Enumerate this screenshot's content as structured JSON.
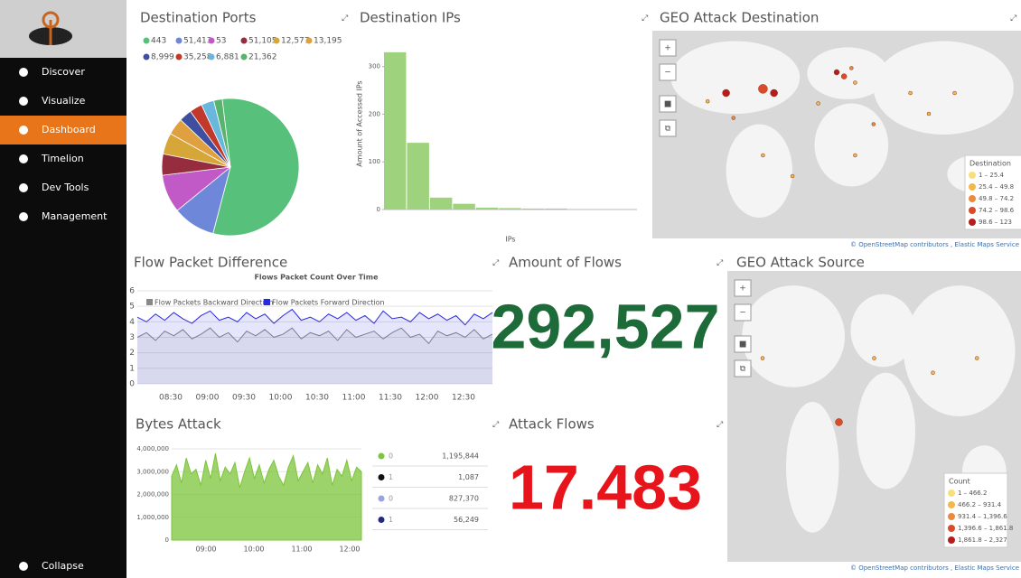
{
  "sidebar": {
    "items": [
      "Discover",
      "Visualize",
      "Dashboard",
      "Timelion",
      "Dev Tools",
      "Management"
    ],
    "active_index": 2,
    "collapse": "Collapse"
  },
  "panels": {
    "destination_ports": {
      "title": "Destination Ports",
      "chart_data": {
        "type": "pie",
        "categories": [
          "443",
          "51,413",
          "53",
          "51,105",
          "12,577",
          "13,195",
          "8,999",
          "35,258",
          "6,881",
          "21,362"
        ],
        "values": [
          56,
          10,
          9,
          5,
          5,
          4,
          3,
          3,
          3,
          2
        ],
        "colors": [
          "#57c17b",
          "#6f87d8",
          "#c15ac7",
          "#962d3e",
          "#d6a738",
          "#e0a040",
          "#3f4fa0",
          "#c0392b",
          "#6ab7dd",
          "#58b46a"
        ]
      }
    },
    "destination_ips": {
      "title": "Destination IPs",
      "chart_data": {
        "type": "bar",
        "y_label": "Amount of Accessed IPs",
        "x_label": "IPs",
        "categories": [
          null,
          null,
          null,
          null,
          null,
          null,
          null,
          null,
          null,
          null,
          null
        ],
        "values": [
          330,
          140,
          25,
          12,
          4,
          3,
          2,
          2,
          1,
          1,
          1
        ],
        "color": "#9fd27c",
        "ylim": [
          0,
          360
        ],
        "yticks": [
          0,
          100,
          200,
          300
        ]
      }
    },
    "geo_destination": {
      "title": "GEO Attack Destination",
      "legend_title": "Destination",
      "legend": [
        "1 – 25.4",
        "25.4 – 49.8",
        "49.8 – 74.2",
        "74.2 – 98.6",
        "98.6 – 123"
      ],
      "legend_colors": [
        "#f7e07b",
        "#f3b84c",
        "#ec8a3c",
        "#d94b2a",
        "#b71c1c"
      ],
      "attribution": "© OpenStreetMap contributors , Elastic Maps Service"
    },
    "flow_packet_difference": {
      "title": "Flow Packet Difference",
      "chart_data": {
        "type": "line",
        "title": "Flows Packet Count Over Time",
        "x_labels": [
          "08:30",
          "09:00",
          "09:30",
          "10:00",
          "10:30",
          "11:00",
          "11:30",
          "12:00",
          "12:30"
        ],
        "ylim": [
          0,
          6
        ],
        "yticks": [
          0,
          1,
          2,
          3,
          4,
          5,
          6
        ],
        "series": [
          {
            "name": "Flow Packets Backward Direction",
            "color": "#888888",
            "values": [
              3.0,
              3.3,
              2.8,
              3.4,
              3.1,
              3.5,
              2.9,
              3.2,
              3.6,
              3.0,
              3.3,
              2.7,
              3.4,
              3.1,
              3.5,
              3.0,
              3.2,
              3.6,
              2.9,
              3.3,
              3.1,
              3.4,
              2.8,
              3.5,
              3.0,
              3.2,
              3.4,
              2.9,
              3.3,
              3.6,
              3.0,
              3.2,
              2.6,
              3.4,
              3.1,
              3.3,
              3.0,
              3.5,
              2.9,
              3.2
            ]
          },
          {
            "name": "Flow Packets Forward Direction",
            "color": "#2a2ae0",
            "values": [
              4.3,
              4.0,
              4.5,
              4.1,
              4.6,
              4.2,
              3.9,
              4.4,
              4.7,
              4.1,
              4.3,
              4.0,
              4.6,
              4.2,
              4.5,
              3.9,
              4.4,
              4.8,
              4.1,
              4.3,
              4.0,
              4.5,
              4.2,
              4.6,
              4.1,
              4.4,
              3.9,
              4.7,
              4.2,
              4.3,
              4.0,
              4.6,
              4.2,
              4.5,
              4.1,
              4.4,
              3.8,
              4.5,
              4.2,
              4.6
            ]
          }
        ]
      }
    },
    "amount_of_flows": {
      "title": "Amount of Flows",
      "value": "292,527",
      "color": "#1e6b3a"
    },
    "geo_source": {
      "title": "GEO Attack Source",
      "legend_title": "Count",
      "legend": [
        "1 – 466.2",
        "466.2 – 931.4",
        "931.4 – 1,396.6",
        "1,396.6 – 1,861.8",
        "1,861.8 – 2,327"
      ],
      "legend_colors": [
        "#f7e07b",
        "#f3b84c",
        "#ec8a3c",
        "#d94b2a",
        "#b71c1c"
      ],
      "attribution": "© OpenStreetMap contributors , Elastic Maps Service"
    },
    "bytes_attack": {
      "title": "Bytes Attack",
      "chart_data": {
        "type": "area",
        "color": "#7cc43a",
        "x_labels": [
          "09:00",
          "10:00",
          "11:00",
          "12:00"
        ],
        "ylim": [
          0,
          4000000
        ],
        "yticks": [
          {
            "value": 0,
            "label": "0"
          },
          {
            "value": 1000000,
            "label": "1,000,000"
          },
          {
            "value": 2000000,
            "label": "2,000,000"
          },
          {
            "value": 3000000,
            "label": "3,000,000"
          },
          {
            "value": 4000000,
            "label": "4,000,000"
          }
        ],
        "values": [
          2800000,
          3300000,
          2500000,
          3600000,
          2900000,
          3100000,
          2400000,
          3500000,
          2700000,
          3800000,
          2600000,
          3200000,
          2900000,
          3400000,
          2300000,
          3000000,
          3600000,
          2700000,
          3300000,
          2500000,
          3100000,
          3500000,
          2800000,
          2400000,
          3200000,
          3700000,
          2600000,
          3000000,
          3400000,
          2500000,
          3300000,
          2900000,
          3600000,
          2400000,
          3100000,
          2800000,
          3500000,
          2600000,
          3200000,
          3000000
        ],
        "table": [
          {
            "label": "0",
            "value": "1,195,844",
            "color": "#7cc43a"
          },
          {
            "label": "1",
            "value": "1,087",
            "color": "#111111"
          },
          {
            "label": "0",
            "value": "827,370",
            "color": "#9aa4dc"
          },
          {
            "label": "1",
            "value": "56,249",
            "color": "#1f2a80"
          }
        ]
      }
    },
    "attack_flows": {
      "title": "Attack Flows",
      "value": "17.483",
      "color": "#e8141b"
    }
  }
}
